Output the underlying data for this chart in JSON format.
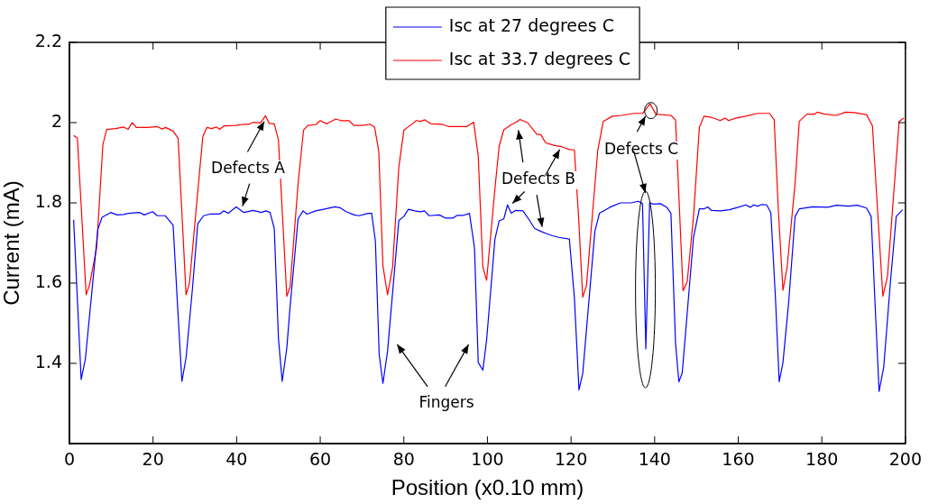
{
  "chart_data": {
    "type": "line",
    "xlabel": "Position (x0.10 mm)",
    "ylabel": "Current (mA)",
    "xlim": [
      0,
      200
    ],
    "xticks": [
      0,
      20,
      40,
      60,
      80,
      100,
      120,
      140,
      160,
      180,
      200
    ],
    "ylim": [
      1.2,
      2.2
    ],
    "yticks": [
      {
        "value": 1.2,
        "label": null
      },
      1.4,
      1.6,
      1.8,
      2,
      2.2
    ],
    "grid": false,
    "legend": "top",
    "marker": "none",
    "line_style": "solid",
    "series": [
      {
        "name": "Isc at 27 degrees C",
        "color": "#0000ff",
        "x": [
          1,
          2.8,
          3.8,
          5.7,
          6.8,
          7.8,
          9.9,
          11.4,
          13,
          14.1,
          16.8,
          17.9,
          19.9,
          21,
          22.9,
          24.8,
          26,
          26.9,
          27.9,
          29.4,
          30.7,
          32.1,
          33.6,
          35.9,
          36.9,
          38,
          39.9,
          41.7,
          44,
          45.9,
          47,
          48,
          49,
          50,
          50.9,
          52,
          52.8,
          54.7,
          55.9,
          56.8,
          58.9,
          60.8,
          63.5,
          64.7,
          66.2,
          68.1,
          69.3,
          71.5,
          72.3,
          73.2,
          74.1,
          75,
          76.1,
          78.8,
          80,
          81.1,
          82.6,
          84,
          84.9,
          86.1,
          88.5,
          90,
          91.7,
          92.8,
          94.3,
          95.7,
          96.9,
          97.8,
          98.9,
          99.8,
          101.8,
          102.8,
          103.9,
          104.8,
          105.7,
          106.7,
          108.5,
          109.9,
          111.3,
          112.8,
          114.2,
          115.6,
          117,
          119.6,
          120.8,
          121.9,
          122.8,
          125.7,
          126.8,
          129.3,
          131.8,
          134.3,
          136.1,
          137.1,
          137.9,
          138.8,
          139.7,
          141.4,
          142.9,
          143.9,
          145,
          145.8,
          146.6,
          149.3,
          150.7,
          151.8,
          152.7,
          153.6,
          155.7,
          157.9,
          160,
          161.8,
          162.9,
          163.7,
          164.6,
          165.7,
          166.8,
          167.8,
          168.9,
          169.8,
          170.7,
          172.1,
          173.6,
          174.6,
          177.9,
          181.4,
          183.5,
          186.4,
          188.5,
          190.7,
          191.8,
          192.7,
          193.7,
          194.8,
          196.4,
          197.8,
          199.3
        ],
        "values": [
          1.758,
          1.36,
          1.41,
          1.615,
          1.734,
          1.764,
          1.776,
          1.77,
          1.771,
          1.774,
          1.776,
          1.77,
          1.778,
          1.768,
          1.768,
          1.744,
          1.519,
          1.355,
          1.414,
          1.583,
          1.748,
          1.768,
          1.772,
          1.772,
          1.78,
          1.774,
          1.79,
          1.776,
          1.781,
          1.776,
          1.78,
          1.776,
          1.736,
          1.462,
          1.355,
          1.438,
          1.543,
          1.76,
          1.78,
          1.772,
          1.78,
          1.784,
          1.79,
          1.788,
          1.778,
          1.77,
          1.768,
          1.774,
          1.774,
          1.704,
          1.422,
          1.35,
          1.43,
          1.756,
          1.766,
          1.784,
          1.78,
          1.778,
          1.78,
          1.768,
          1.77,
          1.762,
          1.762,
          1.769,
          1.769,
          1.774,
          1.688,
          1.402,
          1.383,
          1.458,
          1.71,
          1.755,
          1.76,
          1.795,
          1.774,
          1.781,
          1.78,
          1.759,
          1.736,
          1.729,
          1.723,
          1.718,
          1.714,
          1.71,
          1.564,
          1.334,
          1.375,
          1.729,
          1.774,
          1.789,
          1.8,
          1.8,
          1.804,
          1.798,
          1.436,
          1.8,
          1.797,
          1.798,
          1.789,
          1.774,
          1.451,
          1.354,
          1.376,
          1.714,
          1.785,
          1.785,
          1.79,
          1.781,
          1.78,
          1.783,
          1.789,
          1.795,
          1.789,
          1.795,
          1.792,
          1.796,
          1.795,
          1.776,
          1.564,
          1.354,
          1.402,
          1.556,
          1.766,
          1.785,
          1.79,
          1.789,
          1.794,
          1.792,
          1.794,
          1.787,
          1.766,
          1.556,
          1.33,
          1.39,
          1.601,
          1.766,
          1.783
        ]
      },
      {
        "name": "Isc at 33.7 degrees C",
        "color": "#ff0000",
        "x": [
          1,
          1.9,
          4,
          4.8,
          6.5,
          8,
          8.9,
          11,
          13,
          14,
          15,
          16,
          18.7,
          21,
          22.2,
          23,
          24.8,
          26,
          27.9,
          28.7,
          31.9,
          32.9,
          34,
          35.2,
          35.9,
          37,
          39.8,
          41.7,
          43,
          44,
          45.7,
          46.9,
          47.8,
          49,
          50,
          52,
          52.8,
          54.7,
          56,
          57,
          58.9,
          60,
          61.6,
          63.7,
          65,
          66.9,
          68,
          70,
          71.9,
          73,
          74,
          75,
          76.1,
          77.3,
          78.8,
          80,
          81.5,
          83,
          84,
          85,
          86.5,
          89.2,
          90.7,
          95,
          96.7,
          97.8,
          98.9,
          99.8,
          101.8,
          102.8,
          103.9,
          105.7,
          106.7,
          107.8,
          109.6,
          111.8,
          112.8,
          113.9,
          116,
          117.8,
          119.6,
          120.8,
          121.8,
          122.8,
          123.7,
          126.4,
          127.7,
          129.9,
          132.1,
          135,
          137.1,
          138.9,
          140.3,
          143.9,
          145,
          146.8,
          147.8,
          149.3,
          150.7,
          151.8,
          153.6,
          155.7,
          156.8,
          157.7,
          159.3,
          161.8,
          164.6,
          167.5,
          168.6,
          169.6,
          170.7,
          171.7,
          173.6,
          174.6,
          176.4,
          178.2,
          178.9,
          180.7,
          183.5,
          185.7,
          187.8,
          190.7,
          192.1,
          194.6,
          195.7,
          198.5,
          199.6
        ],
        "values": [
          1.968,
          1.961,
          1.571,
          1.595,
          1.688,
          1.945,
          1.983,
          1.985,
          1.989,
          1.983,
          2.0,
          1.988,
          1.988,
          1.99,
          1.984,
          1.988,
          1.979,
          1.961,
          1.571,
          1.599,
          1.965,
          1.988,
          1.985,
          1.989,
          1.983,
          1.992,
          1.993,
          1.996,
          1.996,
          2.001,
          1.999,
          2.017,
          1.998,
          1.997,
          1.957,
          1.567,
          1.591,
          1.848,
          1.981,
          1.993,
          1.995,
          2.005,
          1.997,
          2.009,
          2.005,
          2.005,
          1.993,
          1.993,
          1.996,
          1.989,
          1.929,
          1.643,
          1.571,
          1.639,
          1.889,
          1.981,
          1.993,
          2.005,
          2.003,
          2.007,
          1.997,
          1.996,
          1.99,
          1.99,
          2.001,
          1.917,
          1.64,
          1.607,
          1.836,
          1.941,
          1.982,
          1.995,
          2.0,
          2.008,
          2.0,
          1.971,
          1.97,
          1.95,
          1.943,
          1.94,
          1.933,
          1.932,
          1.766,
          1.565,
          1.594,
          1.931,
          2.003,
          2.016,
          2.018,
          2.023,
          2.023,
          2.047,
          2.021,
          2.018,
          2.007,
          1.581,
          1.604,
          1.766,
          1.988,
          2.016,
          2.013,
          2.005,
          2.011,
          2.005,
          2.011,
          2.016,
          2.023,
          2.023,
          2.007,
          1.782,
          1.582,
          1.64,
          1.848,
          2.003,
          2.021,
          2.021,
          2.026,
          2.021,
          2.018,
          2.026,
          2.025,
          2.02,
          1.992,
          1.567,
          1.616,
          2.003,
          2.011
        ]
      }
    ],
    "annotations": [
      "Defects A",
      "Defects B",
      "Defects C",
      "Fingers"
    ]
  }
}
